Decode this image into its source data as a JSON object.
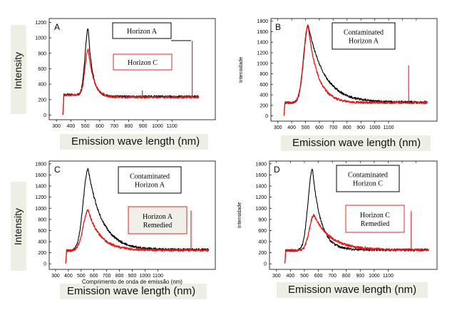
{
  "colors": {
    "black_series": "#000000",
    "red_series": "#e31a1c",
    "legend_red_border": "#d0302a",
    "band": "#efeee4"
  },
  "shared": {
    "emission_label": "Emission wave length (nm)",
    "intensity_label": "Intensity"
  },
  "chart_data": [
    {
      "type": "line",
      "panel": "A",
      "title": "",
      "xlabel": "Emission wave length (nm)",
      "ylabel": "Intensity",
      "xlim": [
        250,
        1400
      ],
      "ylim": [
        -60,
        1250
      ],
      "x_ticks": [
        300,
        400,
        500,
        600,
        700,
        800,
        900,
        1000,
        1100
      ],
      "y_ticks": [
        0,
        200,
        400,
        600,
        800,
        1000,
        1200
      ],
      "legend": [
        {
          "text": "Horizon  A",
          "series": "black"
        },
        {
          "text": "Horizon  C",
          "series": "red"
        }
      ],
      "series": [
        {
          "name": "Horizon  A",
          "color": "black",
          "peak_x": 520,
          "peak_y": 1120,
          "start_x": 345,
          "end_x": 1285,
          "tail_y": 240,
          "base_y": 265,
          "rise": 30,
          "fall": 30,
          "spikes": []
        },
        {
          "name": "Horizon  C",
          "color": "red",
          "peak_x": 520,
          "peak_y": 860,
          "start_x": 345,
          "end_x": 1285,
          "tail_y": 230,
          "base_y": 260,
          "rise": 30,
          "fall": 38,
          "spikes": [
            [
              1240,
              960
            ],
            [
              895,
              320
            ]
          ]
        }
      ]
    },
    {
      "type": "line",
      "panel": "B",
      "title": "",
      "xlabel": "Emission wave length (nm)",
      "ylabel": "Intensidade",
      "xlim": [
        250,
        1450
      ],
      "ylim": [
        -100,
        1850
      ],
      "x_ticks": [
        300,
        400,
        500,
        600,
        700,
        800,
        900,
        1000,
        1100
      ],
      "y_ticks": [
        0,
        200,
        400,
        600,
        800,
        1000,
        1200,
        1400,
        1600,
        1800
      ],
      "legend": [
        {
          "text": "Contaminated\nHorizon  A",
          "series": "black"
        }
      ],
      "series": [
        {
          "name": "Contaminated Horizon  A",
          "color": "black",
          "peak_x": 520,
          "peak_y": 1720,
          "start_x": 345,
          "end_x": 1380,
          "tail_y": 260,
          "base_y": 250,
          "rise": 45,
          "fall": 115,
          "spikes": []
        },
        {
          "name": "",
          "color": "red",
          "peak_x": 518,
          "peak_y": 1720,
          "start_x": 345,
          "end_x": 1380,
          "tail_y": 250,
          "base_y": 250,
          "rise": 45,
          "fall": 70,
          "spikes": [
            [
              1245,
              960
            ]
          ]
        }
      ]
    },
    {
      "type": "line",
      "panel": "C",
      "title": "",
      "xlabel": "Emission wave length (nm)",
      "ylabel": "Intensity",
      "xlim": [
        250,
        1550
      ],
      "ylim": [
        -100,
        1850
      ],
      "x_ticks": [
        300,
        400,
        500,
        600,
        700,
        800,
        900,
        1000,
        1100
      ],
      "y_ticks": [
        0,
        200,
        400,
        600,
        800,
        1000,
        1200,
        1400,
        1600,
        1800
      ],
      "legend": [
        {
          "text": "Contaminated\nHorizon  A",
          "series": "black"
        },
        {
          "text": "Horizon  A\nRemedied",
          "series": "red"
        }
      ],
      "series": [
        {
          "name": "Contaminated Horizon  A",
          "color": "black",
          "peak_x": 555,
          "peak_y": 1700,
          "start_x": 380,
          "end_x": 1500,
          "tail_y": 255,
          "base_y": 240,
          "rise": 55,
          "fall": 110,
          "spikes": []
        },
        {
          "name": "Horizon  A Remedied",
          "color": "red",
          "peak_x": 555,
          "peak_y": 960,
          "start_x": 380,
          "end_x": 1500,
          "tail_y": 245,
          "base_y": 240,
          "rise": 55,
          "fall": 95,
          "spikes": [
            [
              1360,
              960
            ]
          ]
        }
      ],
      "underlay_text": "Comprimento de onda de emissão (nm)"
    },
    {
      "type": "line",
      "panel": "D",
      "title": "",
      "xlabel": "Emission wave length (nm)",
      "ylabel": "Intensidade",
      "xlim": [
        250,
        1450
      ],
      "ylim": [
        -100,
        1850
      ],
      "x_ticks": [
        300,
        400,
        500,
        600,
        700,
        800,
        900,
        1000,
        1100
      ],
      "y_ticks": [
        0,
        200,
        400,
        600,
        800,
        1000,
        1200,
        1400,
        1600,
        1800
      ],
      "legend": [
        {
          "text": "Contaminated\nHorizon  C",
          "series": "black"
        },
        {
          "text": "Horizon  C\nRemedied",
          "series": "red"
        }
      ],
      "series": [
        {
          "name": "Contaminated Horizon  C",
          "color": "black",
          "peak_x": 558,
          "peak_y": 1700,
          "start_x": 360,
          "end_x": 1390,
          "tail_y": 250,
          "base_y": 240,
          "rise": 45,
          "fall": 60,
          "spikes": []
        },
        {
          "name": "Horizon  C Remedied",
          "color": "red",
          "peak_x": 568,
          "peak_y": 880,
          "start_x": 360,
          "end_x": 1390,
          "tail_y": 250,
          "base_y": 240,
          "rise": 45,
          "fall": 120,
          "spikes": [
            [
              1265,
              950
            ],
            [
              935,
              320
            ]
          ]
        }
      ]
    }
  ]
}
